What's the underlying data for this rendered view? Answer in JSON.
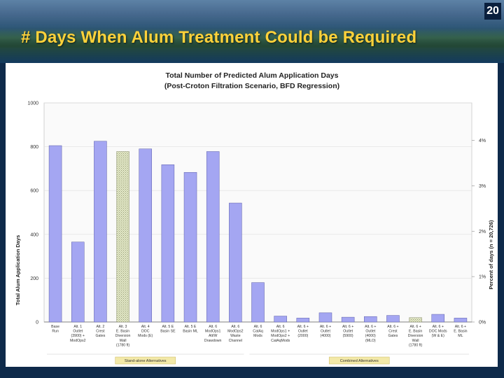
{
  "slide": {
    "number": "20",
    "title": "# Days When Alum Treatment Could be Required"
  },
  "colors": {
    "bar": "#a4a6f2",
    "bar_border": "#5a5ca8",
    "hatched_bar": "#e3e9c8",
    "group_box": "#f3e9a8",
    "title": "#ffd23a"
  },
  "chart_data": {
    "type": "bar",
    "title": "Total Number of Predicted Alum Application Days",
    "subtitle": "(Post-Croton Filtration Scenario, BFD Regression)",
    "ylabel": "Total Alum Application Days",
    "y2label": "Percent of days (n = 20,726)",
    "ylim": [
      0,
      1000
    ],
    "yticks": [
      "0",
      "200",
      "400",
      "600",
      "800",
      "1000"
    ],
    "y2ticks": [
      "0%",
      "1%",
      "2%",
      "3%",
      "4%"
    ],
    "y2_days_per_percent": 207.26,
    "categories": [
      [
        "Base",
        "Run"
      ],
      [
        "Alt. 1",
        "Outlet",
        "(3900) +",
        "ModOps2"
      ],
      [
        "Alt. 2",
        "Crest",
        "Gates"
      ],
      [
        "Alt. 3",
        "E. Basin",
        "Diversion",
        "Wall",
        "(1780 ft)"
      ],
      [
        "Alt. 4",
        "DOC",
        "Mods (E)"
      ],
      [
        "Alt. 5 E",
        "Basin SE"
      ],
      [
        "Alt. 5 E",
        "Basin ML"
      ],
      [
        "Alt. 6",
        "ModOps1",
        "Alt/W",
        "Drawdown"
      ],
      [
        "Alt. 6",
        "ModOps2",
        "Waste",
        "Channel"
      ],
      [
        "Alt. 6",
        "CatAq",
        "Mods"
      ],
      [
        "Alt. 6",
        "ModOps1 +",
        "ModOps2 +",
        "CatAqMods"
      ],
      [
        "Alt. 6 +",
        "Outlet",
        "(2000)"
      ],
      [
        "Alt. 6 +",
        "Outlet",
        "(4000)"
      ],
      [
        "Alt. 6 +",
        "Outlet",
        "(5900)"
      ],
      [
        "Alt. 6 +",
        "Outlet",
        "(4000)",
        "(MLO)"
      ],
      [
        "Alt. 6 +",
        "Crest",
        "Gates"
      ],
      [
        "Alt. 6 +",
        "E. Basin",
        "Diversion",
        "Wall",
        "(1780 ft)"
      ],
      [
        "Alt. 6 +",
        "DOC Mods",
        "(W & E)"
      ],
      [
        "Alt. 6 +",
        "E. Basin",
        "ML"
      ]
    ],
    "values": [
      805,
      365,
      825,
      778,
      790,
      718,
      683,
      778,
      543,
      180,
      27,
      18,
      42,
      22,
      25,
      30,
      20,
      35,
      18
    ],
    "hatched": [
      false,
      false,
      false,
      true,
      false,
      false,
      false,
      false,
      false,
      false,
      false,
      false,
      false,
      false,
      false,
      false,
      true,
      false,
      false
    ],
    "groups": [
      {
        "label": "Stand-alone Alternatives",
        "from": 0,
        "to": 8
      },
      {
        "label": "Combined Alternatives",
        "from": 9,
        "to": 18
      }
    ]
  }
}
